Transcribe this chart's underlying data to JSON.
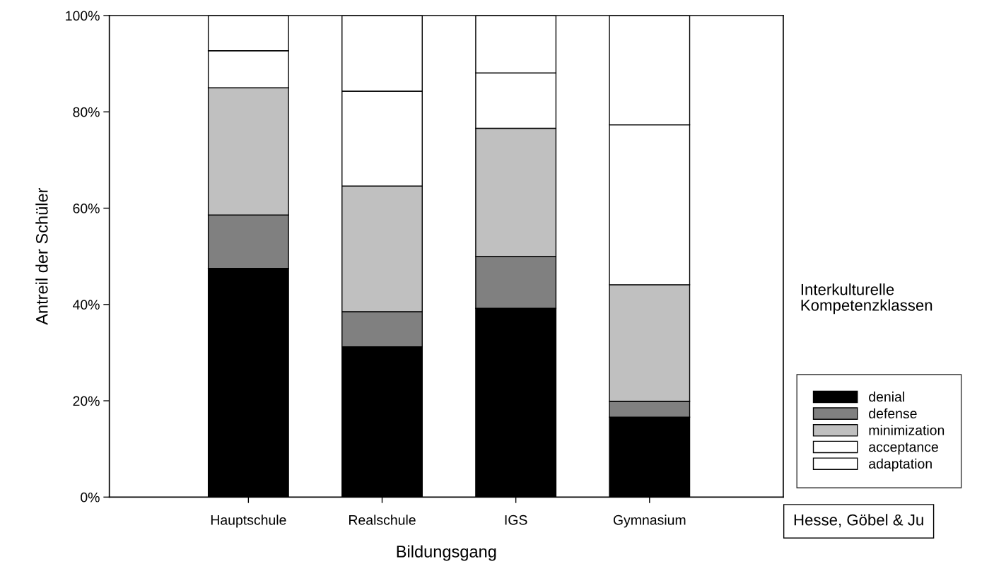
{
  "chart_data": {
    "type": "bar",
    "stacked": true,
    "xlabel": "Bildungsgang",
    "ylabel": "Antreil der Schüler",
    "legend_title": "Interkulturelle\nKompetenzklassen",
    "legend": "right",
    "grid": false,
    "categories": [
      "Hauptschule",
      "Realschule",
      "IGS",
      "Gymnasium"
    ],
    "ylim": [
      0,
      100
    ],
    "yticks": [
      {
        "value": 0,
        "label": "0%"
      },
      {
        "value": 20,
        "label": "20%"
      },
      {
        "value": 40,
        "label": "40%"
      },
      {
        "value": 60,
        "label": "60%"
      },
      {
        "value": 80,
        "label": "80%"
      },
      {
        "value": 100,
        "label": "100%"
      }
    ],
    "series": [
      {
        "name": "denial",
        "color": "#000000",
        "values": [
          47.5,
          31.2,
          39.2,
          16.6
        ]
      },
      {
        "name": "defense",
        "color": "#808080",
        "values": [
          11.1,
          7.3,
          10.8,
          3.3
        ]
      },
      {
        "name": "minimization",
        "color": "#c0c0c0",
        "values": [
          26.4,
          26.1,
          26.6,
          24.2
        ]
      },
      {
        "name": "acceptance",
        "color": "#ffffff",
        "values": [
          7.7,
          19.7,
          11.5,
          33.2
        ]
      },
      {
        "name": "adaptation",
        "color": "#ffffff",
        "values": [
          7.3,
          15.7,
          11.9,
          22.7
        ]
      }
    ],
    "annotations": [
      "Hesse, Göbel & Ju"
    ]
  }
}
